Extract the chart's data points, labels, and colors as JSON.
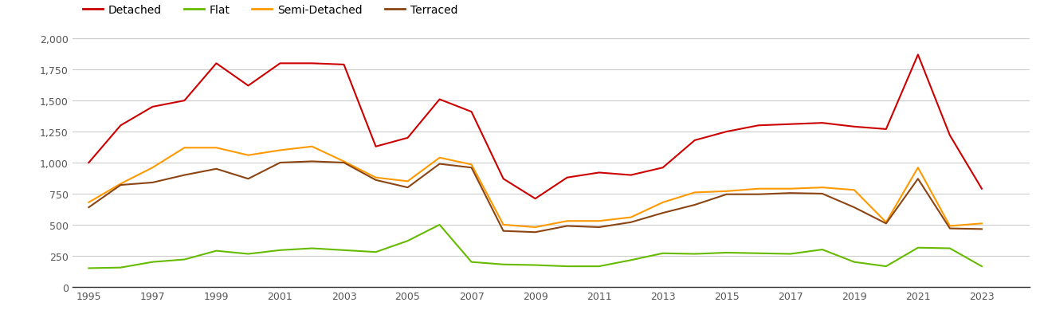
{
  "years": [
    1995,
    1996,
    1997,
    1998,
    1999,
    2000,
    2001,
    2002,
    2003,
    2004,
    2005,
    2006,
    2007,
    2008,
    2009,
    2010,
    2011,
    2012,
    2013,
    2014,
    2015,
    2016,
    2017,
    2018,
    2019,
    2020,
    2021,
    2022,
    2023,
    2024
  ],
  "detached": [
    1000,
    1300,
    1450,
    1500,
    1800,
    1620,
    1800,
    1800,
    1790,
    1130,
    1200,
    1510,
    1410,
    870,
    710,
    880,
    920,
    900,
    960,
    1180,
    1250,
    1300,
    1310,
    1320,
    1290,
    1270,
    1870,
    1220,
    790,
    null
  ],
  "flat": [
    150,
    155,
    200,
    220,
    290,
    265,
    295,
    310,
    295,
    280,
    370,
    500,
    200,
    180,
    175,
    165,
    165,
    215,
    270,
    265,
    275,
    270,
    265,
    300,
    200,
    165,
    315,
    310,
    165,
    null
  ],
  "semi_detached": [
    680,
    830,
    960,
    1120,
    1120,
    1060,
    1100,
    1130,
    1010,
    880,
    850,
    1040,
    985,
    500,
    480,
    530,
    530,
    560,
    680,
    760,
    770,
    790,
    790,
    800,
    780,
    520,
    960,
    490,
    510,
    null
  ],
  "terraced": [
    640,
    820,
    840,
    900,
    950,
    870,
    1000,
    1010,
    1000,
    860,
    800,
    990,
    960,
    450,
    440,
    490,
    480,
    520,
    595,
    660,
    745,
    745,
    755,
    750,
    640,
    510,
    870,
    470,
    465,
    null
  ],
  "detached_color": "#cc0000",
  "flat_color": "#66bb00",
  "semi_detached_color": "#ff9900",
  "terraced_color": "#8b4513",
  "ylim": [
    0,
    2000
  ],
  "yticks": [
    0,
    250,
    500,
    750,
    1000,
    1250,
    1500,
    1750,
    2000
  ],
  "ytick_labels": [
    "0",
    "250",
    "500",
    "750",
    "1,000",
    "1,250",
    "1,500",
    "1,750",
    "2,000"
  ],
  "xtick_positions": [
    1995,
    1997,
    1999,
    2001,
    2003,
    2005,
    2007,
    2009,
    2011,
    2013,
    2015,
    2017,
    2019,
    2021,
    2023
  ],
  "xlim_left": 1994.5,
  "xlim_right": 2024.5,
  "bg_color": "#ffffff",
  "grid_color": "#cccccc",
  "line_width": 1.5,
  "legend_items": [
    {
      "label": "Detached",
      "color": "#cc0000"
    },
    {
      "label": "Flat",
      "color": "#66bb00"
    },
    {
      "label": "Semi-Detached",
      "color": "#ff9900"
    },
    {
      "label": "Terraced",
      "color": "#8b4513"
    }
  ]
}
